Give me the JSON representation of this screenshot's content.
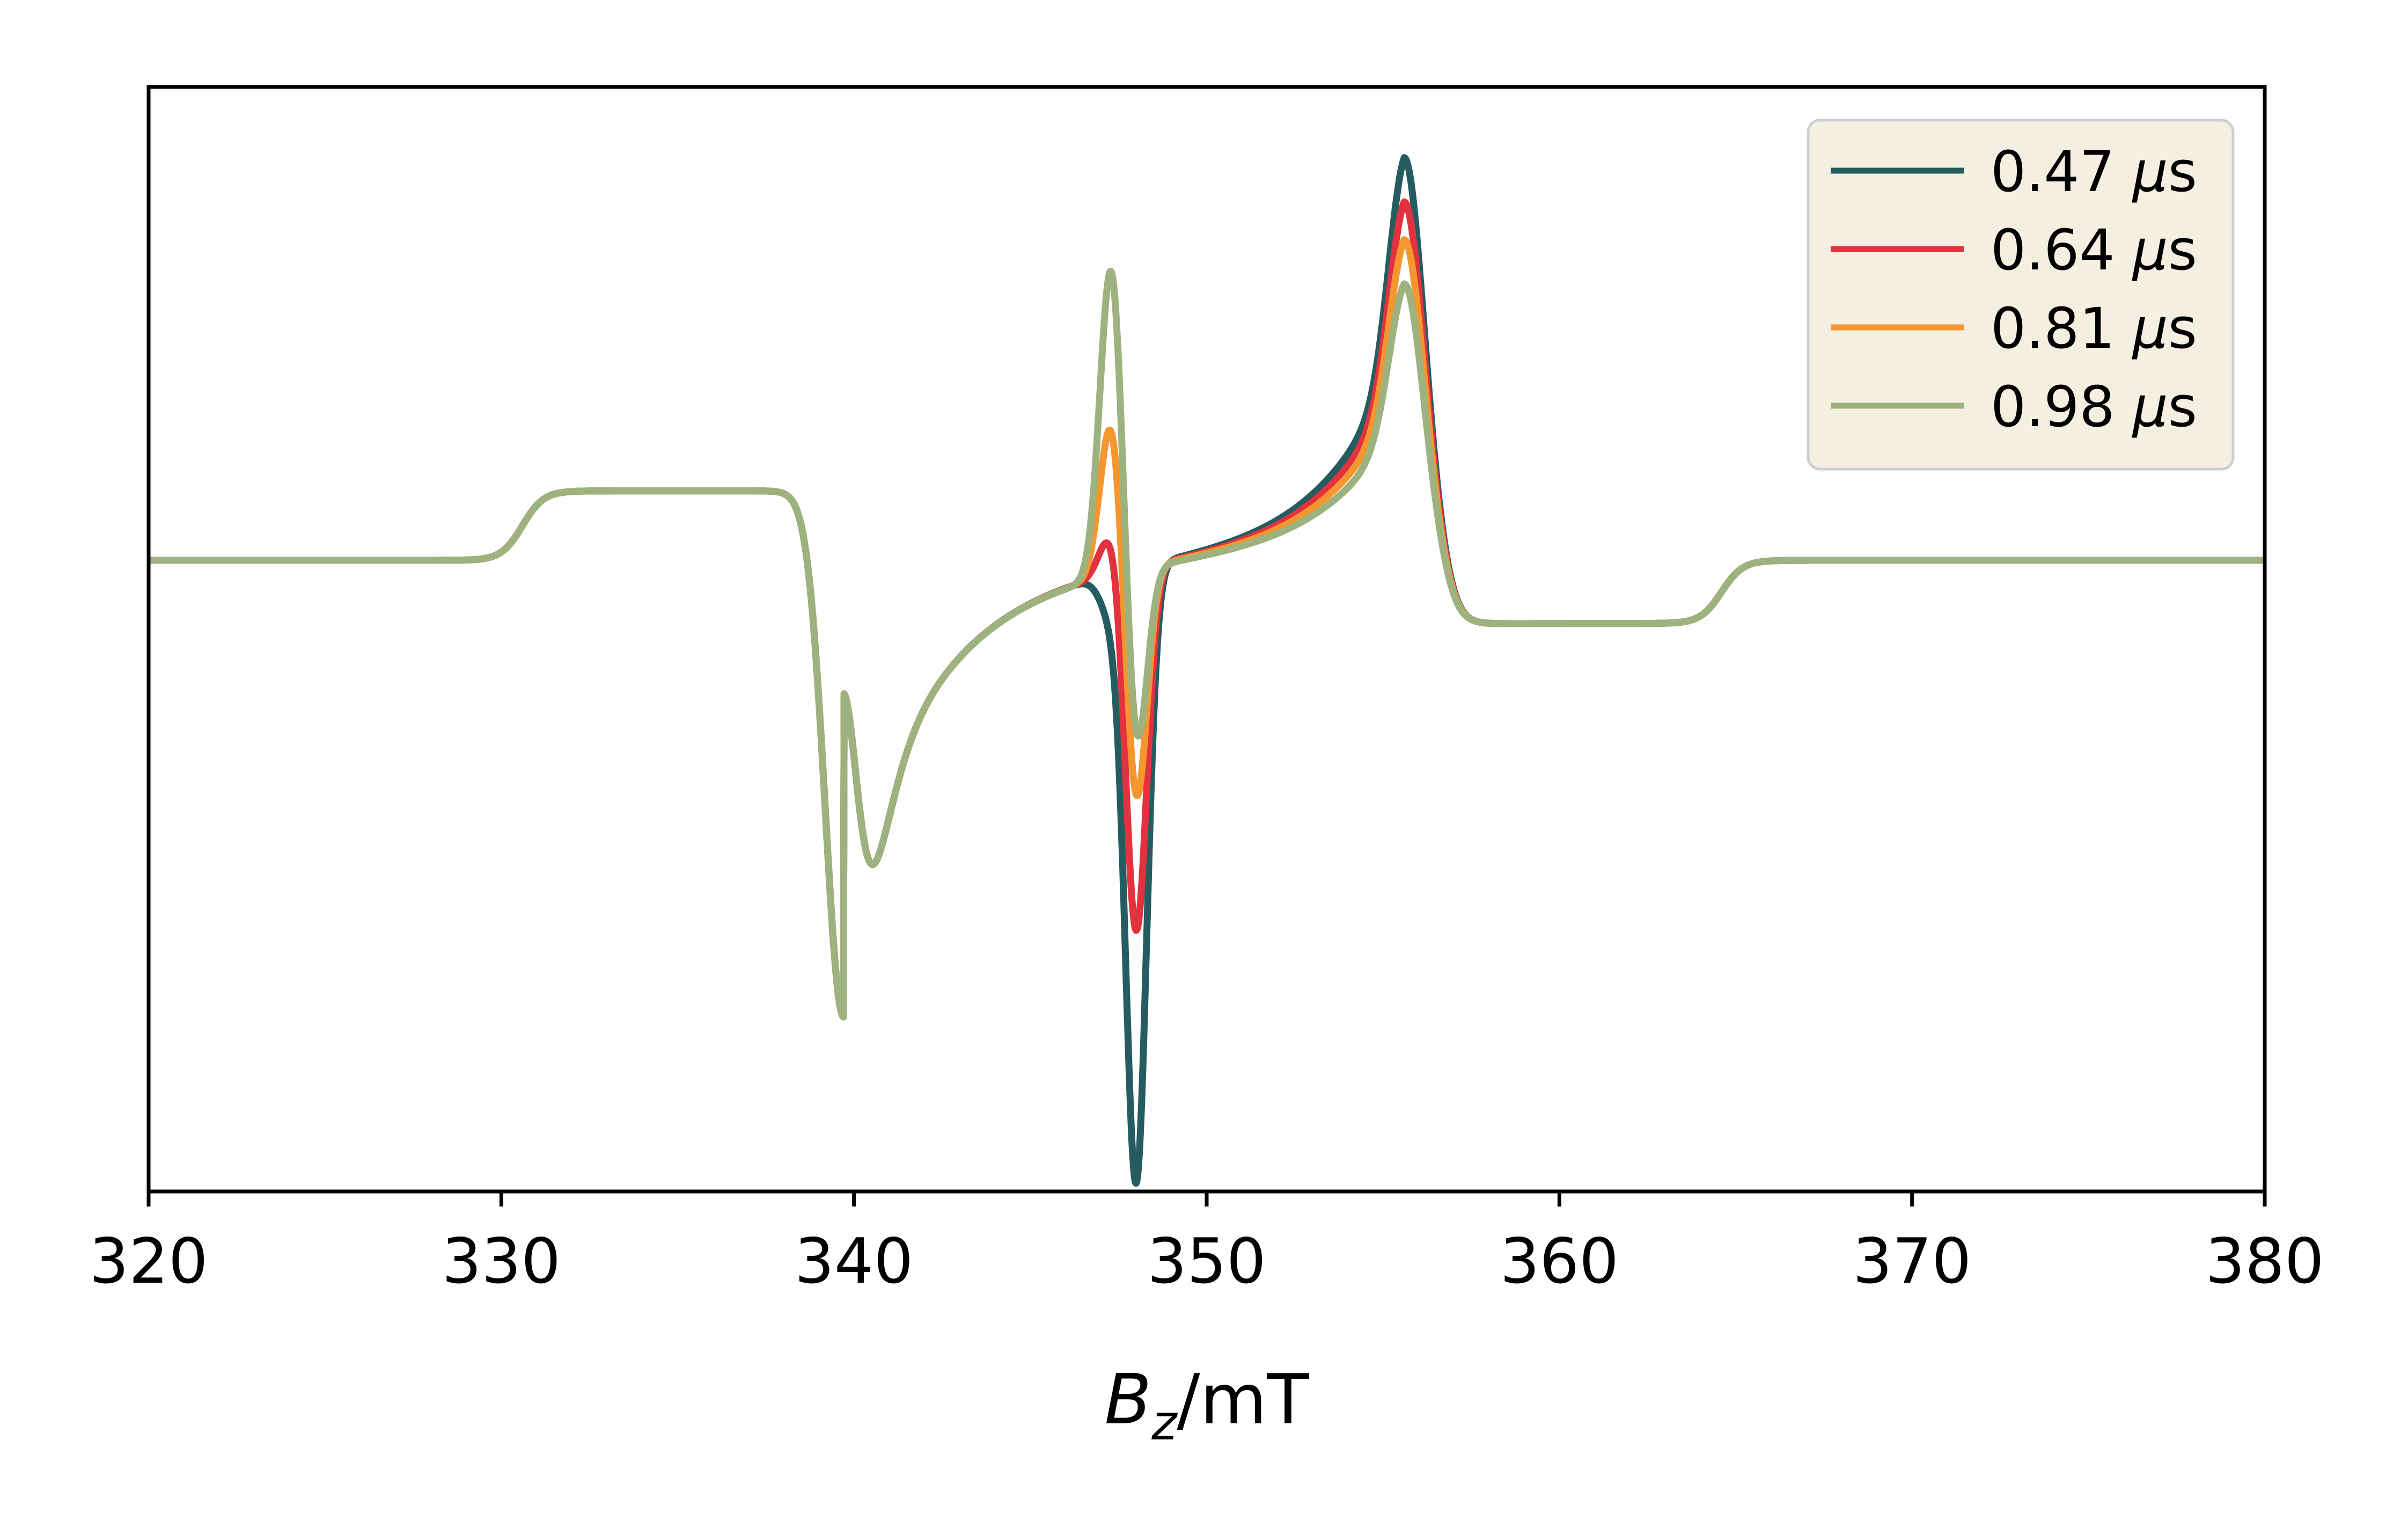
{
  "chart_data": {
    "type": "line",
    "title": "",
    "xlabel": {
      "symbol": "B",
      "subscript": "z",
      "unit": "/mT"
    },
    "ylabel": "",
    "xlim": [
      320,
      380
    ],
    "ylim": [
      -1.0,
      0.75
    ],
    "xticks": [
      320,
      330,
      340,
      350,
      360,
      370,
      380
    ],
    "x_tick_labels": [
      "320",
      "330",
      "340",
      "350",
      "360",
      "370",
      "380"
    ],
    "yticks_visible": false,
    "grid": false,
    "legend_placement": "top-right",
    "legend_background": "#F5EFE1",
    "series": [
      {
        "name_value": "0.47",
        "name_unit": "μs",
        "color": "#255C60",
        "center_peak": -0.06,
        "center_trough": -0.97
      },
      {
        "name_value": "0.64",
        "name_unit": "μs",
        "color": "#E2323F",
        "center_peak": 0.07,
        "center_trough": -0.58
      },
      {
        "name_value": "0.81",
        "name_unit": "μs",
        "color": "#F5962F",
        "center_peak": 0.25,
        "center_trough": -0.38
      },
      {
        "name_value": "0.98",
        "name_unit": "μs",
        "color": "#9DB27E",
        "center_peak": 0.5,
        "center_trough": -0.3
      }
    ],
    "shared_features": {
      "baseline": 0.0,
      "low_plateau_start_field": 330.0,
      "low_plateau_end_field": 338.2,
      "low_plateau_height": 0.11,
      "left_trough_field": 339.7,
      "left_trough_value": -0.62,
      "center_peak_field": 347.3,
      "center_trough_field": 348.0,
      "right_peak_field": 355.6,
      "right_peak_values": [
        0.64,
        0.57,
        0.51,
        0.44
      ],
      "high_plateau_start_field": 357.2,
      "high_plateau_end_field": 364.0,
      "high_plateau_height": -0.1
    }
  }
}
